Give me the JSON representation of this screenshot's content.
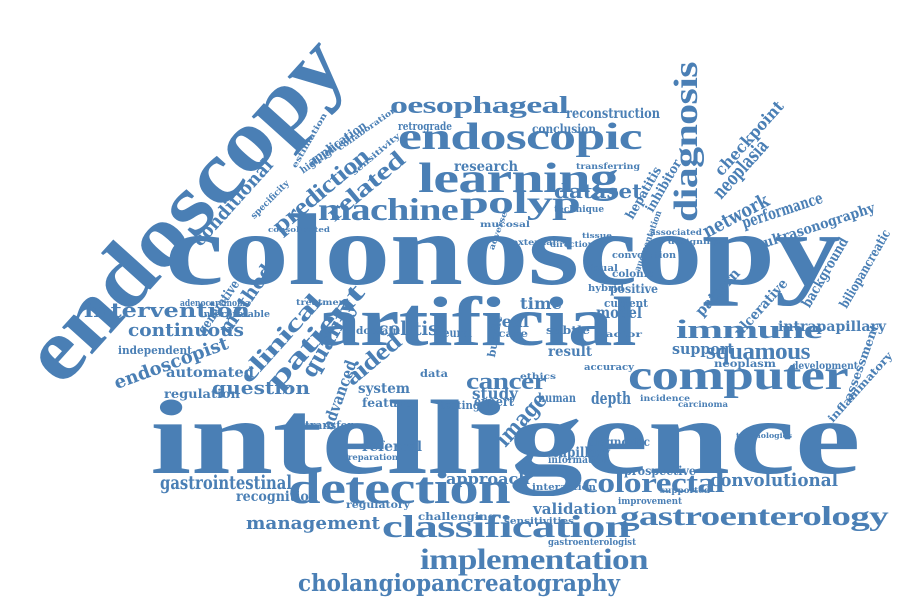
{
  "colors": {
    "word": "#4a7fb5",
    "background": "#ffffff"
  },
  "words": [
    "endoscopy",
    "colonoscopy",
    "intelligence",
    "artificial",
    "computer",
    "detection",
    "classification",
    "learning",
    "endoscopic",
    "machine",
    "polyp",
    "diagnosis",
    "oesophageal",
    "implementation",
    "gastroenterology",
    "cholangiopancreatography",
    "colorectal",
    "immune",
    "patient",
    "clinical",
    "prediction",
    "related",
    "intervention",
    "continuous",
    "endoscopist",
    "method",
    "conditional",
    "question",
    "automated",
    "regulation",
    "gastrointestinal",
    "recognition",
    "management",
    "approach",
    "cancer",
    "image",
    "squamous",
    "support",
    "network",
    "performance",
    "ultrasonography",
    "neoplasia",
    "checkpoint",
    "dataset",
    "reconstruction",
    "conclusion",
    "research",
    "retrograde",
    "convolutional",
    "diagnostic",
    "validation",
    "quality",
    "aided",
    "colitis",
    "time",
    "real",
    "model",
    "result",
    "study",
    "system",
    "feature",
    "advanced",
    "referral",
    "capillary",
    "information",
    "intrapapillary",
    "ulcerative",
    "background",
    "biliopancreatic",
    "inflammatory",
    "assessment",
    "development",
    "neoplasm",
    "pattern",
    "inhibitor",
    "hepatitis",
    "generative",
    "application",
    "highlighted",
    "specificity",
    "independent",
    "interpretable",
    "adenocarcinoma",
    "transfer",
    "domain",
    "neural",
    "expert",
    "depth",
    "human",
    "current",
    "prospective",
    "improvement",
    "sensitivities",
    "interaction",
    "challenging",
    "regulatory",
    "gastroenterologist",
    "preparation",
    "colonic",
    "visual",
    "hybrid",
    "positive",
    "convolution",
    "subtle",
    "care",
    "data",
    "testing",
    "bundle",
    "technique",
    "transferring",
    "external",
    "direction",
    "adverse",
    "associated",
    "designing",
    "augmentation",
    "collaboration",
    "estimation",
    "sensitivity",
    "consolidated",
    "treatment",
    "carcinoma",
    "ethics",
    "tissue",
    "factor",
    "mucosal",
    "accuracy",
    "supported",
    "incidence",
    "technologies"
  ]
}
